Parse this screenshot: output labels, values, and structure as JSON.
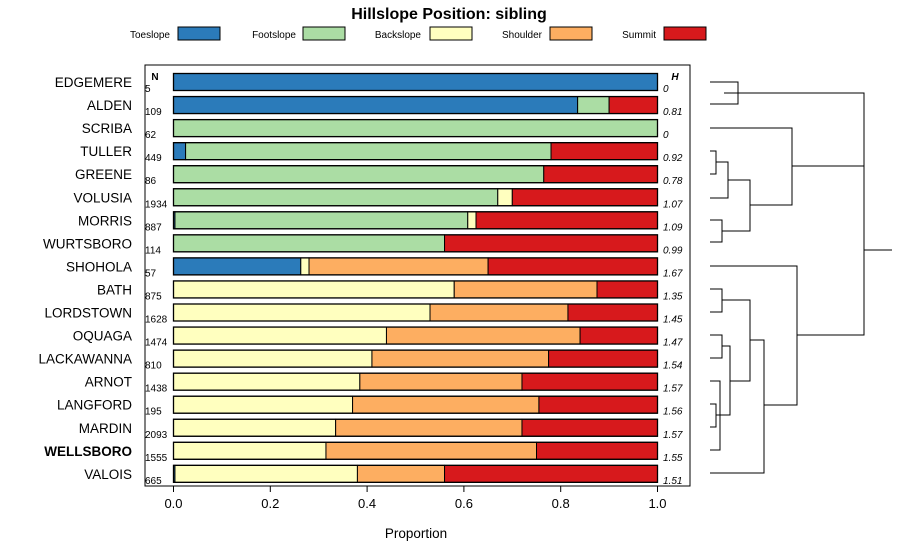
{
  "chart_data": {
    "type": "bar",
    "stacked": true,
    "orientation": "horizontal",
    "title": "Hillslope Position: sibling",
    "xlabel": "Proportion",
    "xlim": [
      0,
      1
    ],
    "x_ticks": [
      "0.0",
      "0.2",
      "0.4",
      "0.6",
      "0.8",
      "1.0"
    ],
    "n_header": "N",
    "h_header": "H",
    "highlight": "WELLSBORO",
    "legend": [
      {
        "name": "Toeslope",
        "color": "#2b7bba"
      },
      {
        "name": "Footslope",
        "color": "#abdda4"
      },
      {
        "name": "Backslope",
        "color": "#ffffbf"
      },
      {
        "name": "Shoulder",
        "color": "#fdae61"
      },
      {
        "name": "Summit",
        "color": "#d7191c"
      }
    ],
    "rows": [
      {
        "label": "EDGEMERE",
        "n": "5",
        "h": "0",
        "values": [
          1.0,
          0.0,
          0.0,
          0.0,
          0.0
        ]
      },
      {
        "label": "ALDEN",
        "n": "109",
        "h": "0.81",
        "values": [
          0.835,
          0.065,
          0.0,
          0.0,
          0.1
        ]
      },
      {
        "label": "SCRIBA",
        "n": "62",
        "h": "0",
        "values": [
          0.0,
          1.0,
          0.0,
          0.0,
          0.0
        ]
      },
      {
        "label": "TULLER",
        "n": "449",
        "h": "0.92",
        "values": [
          0.025,
          0.755,
          0.0,
          0.0,
          0.22
        ]
      },
      {
        "label": "GREENE",
        "n": "86",
        "h": "0.78",
        "values": [
          0.0,
          0.765,
          0.0,
          0.0,
          0.235
        ]
      },
      {
        "label": "VOLUSIA",
        "n": "1934",
        "h": "1.07",
        "values": [
          0.0,
          0.67,
          0.03,
          0.0,
          0.3
        ]
      },
      {
        "label": "MORRIS",
        "n": "887",
        "h": "1.09",
        "values": [
          0.003,
          0.605,
          0.017,
          0.0,
          0.375
        ]
      },
      {
        "label": "WURTSBORO",
        "n": "114",
        "h": "0.99",
        "values": [
          0.0,
          0.56,
          0.0,
          0.0,
          0.44
        ]
      },
      {
        "label": "SHOHOLA",
        "n": "57",
        "h": "1.67",
        "values": [
          0.263,
          0.0,
          0.017,
          0.37,
          0.35
        ]
      },
      {
        "label": "BATH",
        "n": "875",
        "h": "1.35",
        "values": [
          0.0,
          0.0,
          0.58,
          0.295,
          0.125
        ]
      },
      {
        "label": "LORDSTOWN",
        "n": "1628",
        "h": "1.45",
        "values": [
          0.0,
          0.0,
          0.53,
          0.285,
          0.185
        ]
      },
      {
        "label": "OQUAGA",
        "n": "1474",
        "h": "1.47",
        "values": [
          0.0,
          0.0,
          0.44,
          0.4,
          0.16
        ]
      },
      {
        "label": "LACKAWANNA",
        "n": "810",
        "h": "1.54",
        "values": [
          0.0,
          0.0,
          0.41,
          0.365,
          0.225
        ]
      },
      {
        "label": "ARNOT",
        "n": "1438",
        "h": "1.57",
        "values": [
          0.0,
          0.0,
          0.385,
          0.335,
          0.28
        ]
      },
      {
        "label": "LANGFORD",
        "n": "195",
        "h": "1.56",
        "values": [
          0.0,
          0.0,
          0.37,
          0.385,
          0.245
        ]
      },
      {
        "label": "MARDIN",
        "n": "2093",
        "h": "1.57",
        "values": [
          0.0,
          0.0,
          0.335,
          0.385,
          0.28
        ]
      },
      {
        "label": "WELLSBORO",
        "n": "1555",
        "h": "1.55",
        "values": [
          0.0,
          0.0,
          0.315,
          0.435,
          0.25
        ]
      },
      {
        "label": "VALOIS",
        "n": "665",
        "h": "1.51",
        "values": [
          0.003,
          0.0,
          0.377,
          0.18,
          0.44
        ]
      }
    ]
  }
}
